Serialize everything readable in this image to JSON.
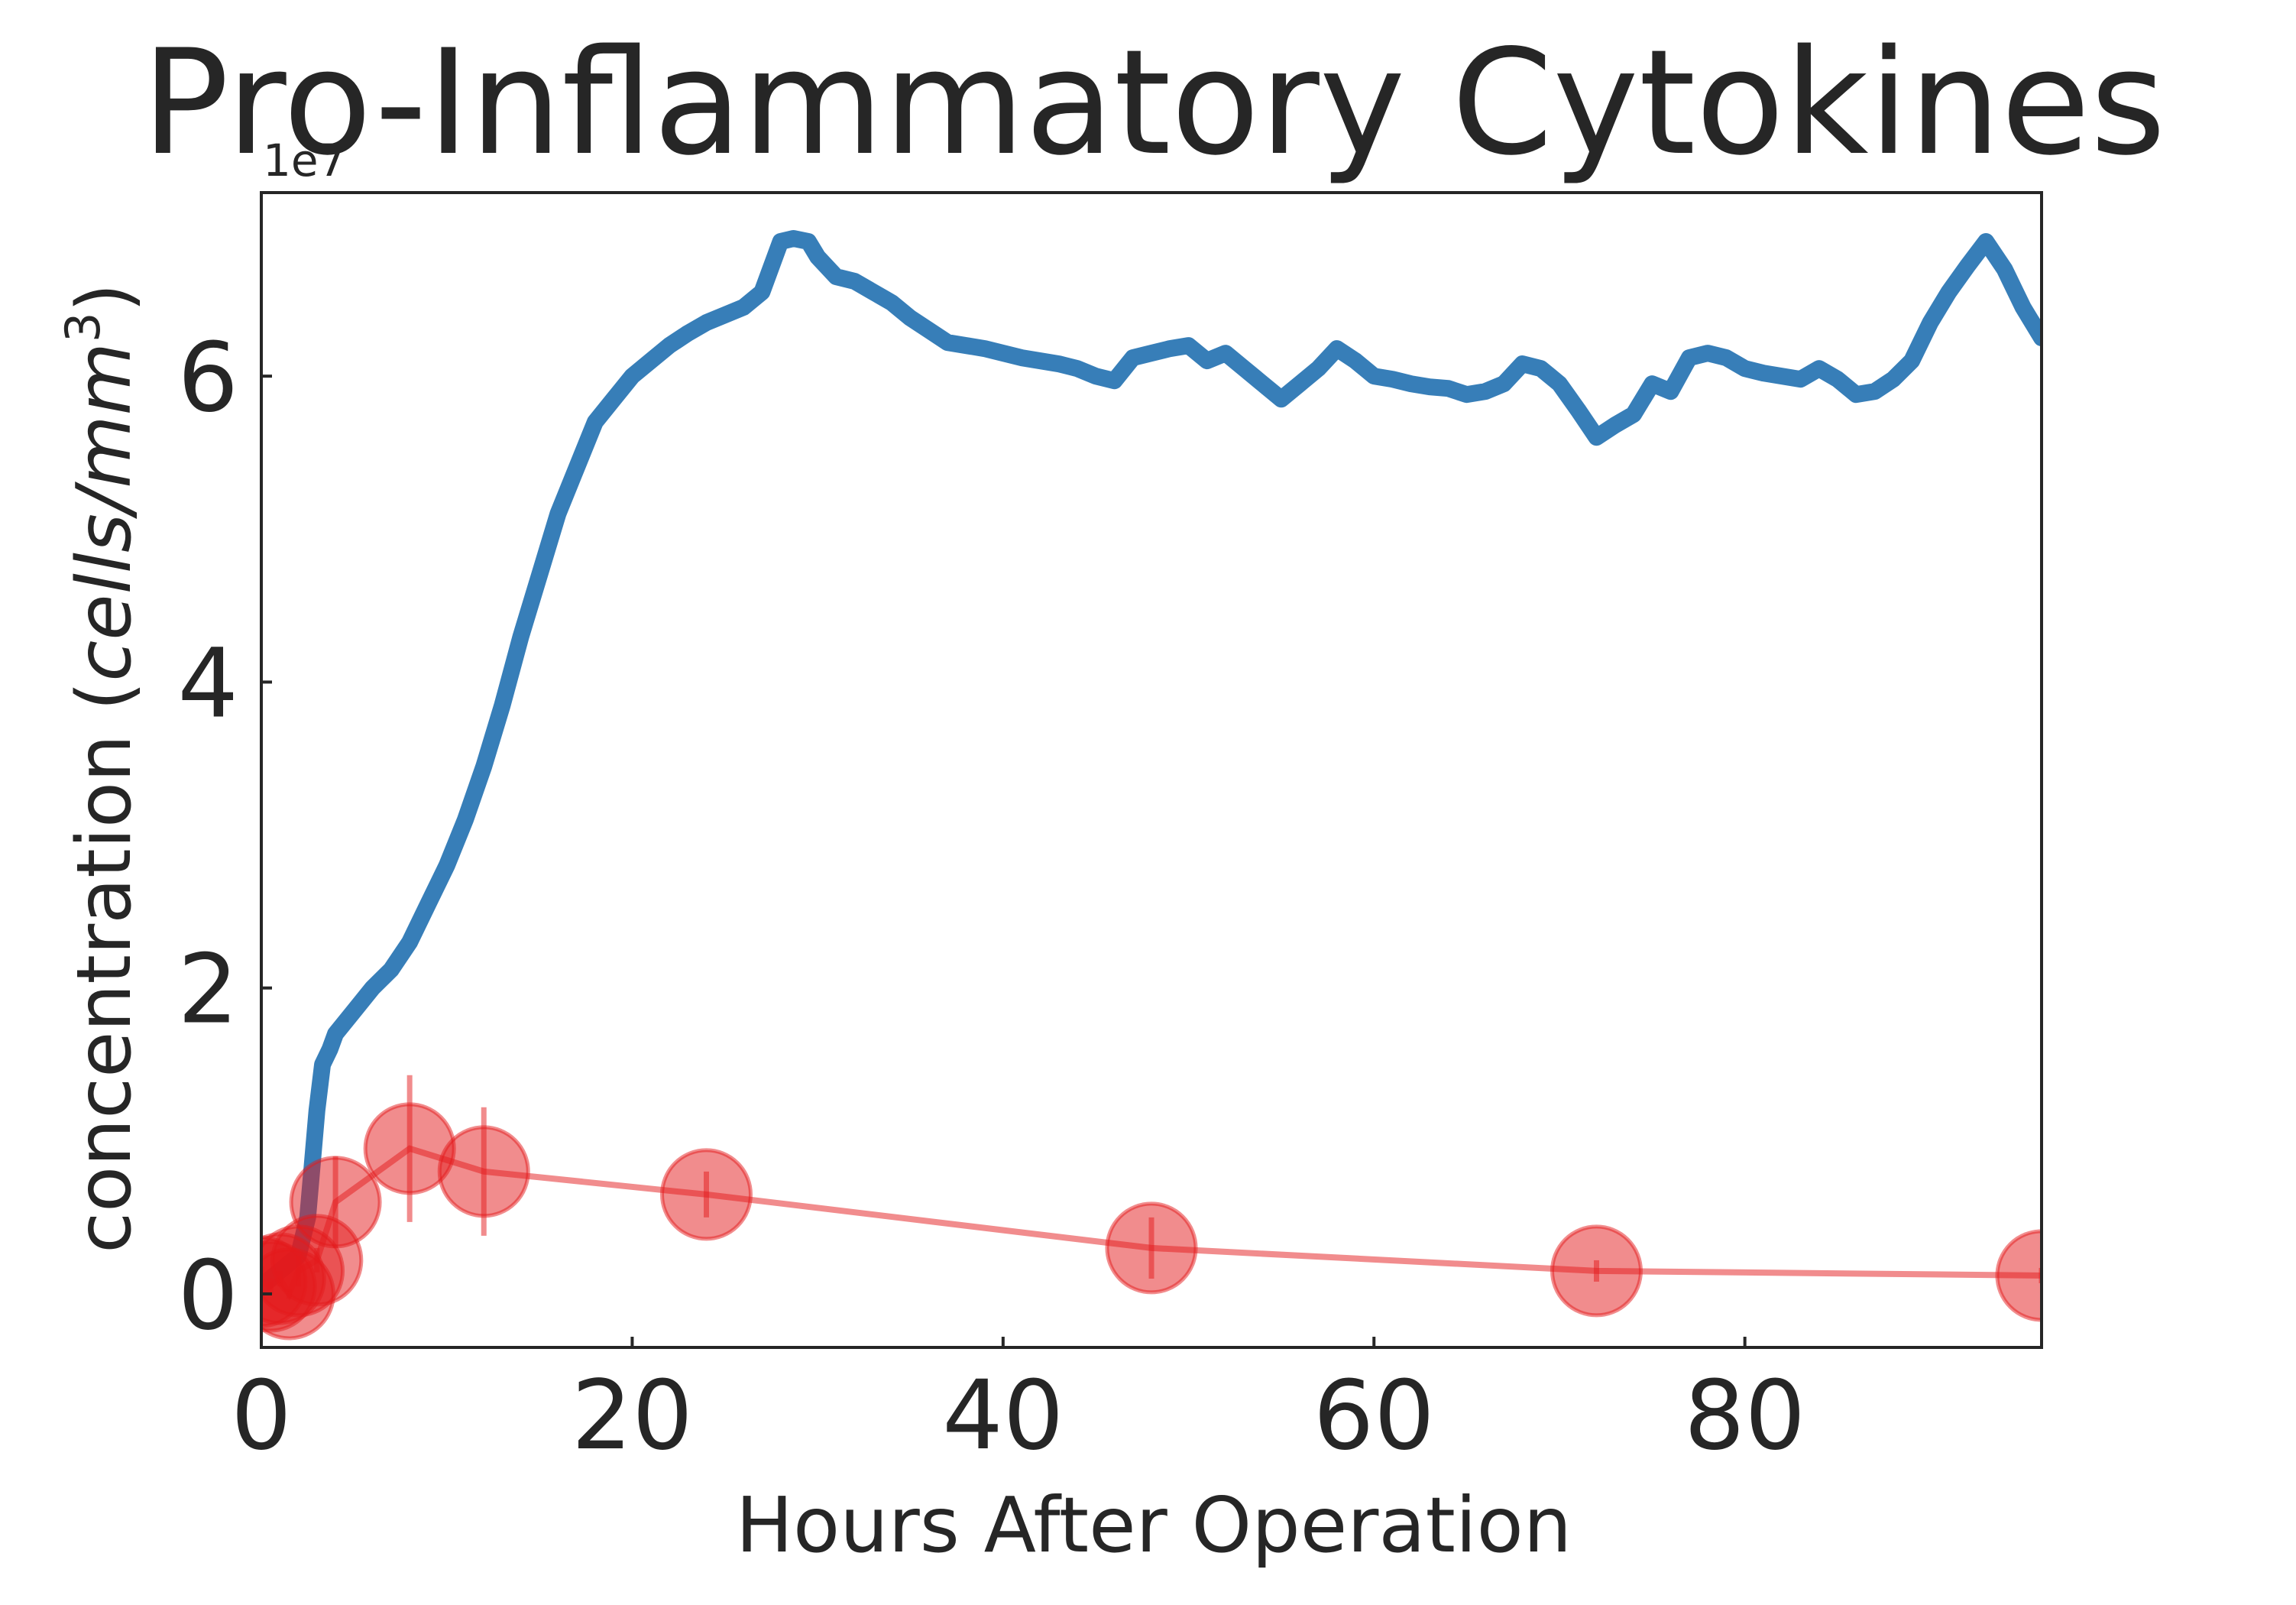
{
  "chart_data": {
    "type": "line",
    "title": "Pro-Inflammatory Cytokines",
    "xlabel": "Hours After Operation",
    "ylabel": "concentration (",
    "ylabel_unit": "cells/mm",
    "ylabel_exp": "3",
    "ylabel_close": ")",
    "y_offset_label": "1e7",
    "xlim": [
      0,
      96
    ],
    "ylim": [
      -0.35,
      7.2
    ],
    "y_scale_factor": 10000000,
    "xticks": [
      0,
      20,
      40,
      60,
      80
    ],
    "xtick_labels": [
      "0",
      "20",
      "40",
      "60",
      "80"
    ],
    "yticks": [
      0,
      2,
      4,
      6
    ],
    "ytick_labels": [
      "0",
      "2",
      "4",
      "6"
    ],
    "grid": false,
    "legend": "none",
    "series": [
      {
        "type": "line",
        "color": "#377eb8",
        "x": [
          0,
          0.5,
          1,
          1.5,
          2,
          2.5,
          3,
          3.3,
          3.7,
          4,
          5,
          6,
          7,
          8,
          9,
          10,
          11,
          12,
          13,
          14,
          15,
          16,
          17,
          18,
          19,
          20,
          21,
          22,
          23,
          24,
          25,
          26,
          27,
          28,
          28.7,
          29.5,
          30,
          31,
          32,
          33,
          34,
          35,
          36,
          37,
          38,
          39,
          40,
          41,
          42,
          43,
          44,
          45,
          46,
          47,
          48,
          49,
          50,
          51,
          52,
          53,
          54,
          55,
          56,
          57,
          58,
          59,
          60,
          61,
          62,
          63,
          64,
          65,
          66,
          67,
          68,
          69,
          70,
          71,
          72,
          73,
          74,
          75,
          76,
          77,
          78,
          79,
          80,
          81,
          82,
          83,
          84,
          85,
          86,
          87,
          88,
          89,
          90,
          91,
          92,
          93,
          94,
          95,
          96
        ],
        "y": [
          0.05,
          0.1,
          0.15,
          0.2,
          0.25,
          0.5,
          1.2,
          1.5,
          1.6,
          1.7,
          1.85,
          2.0,
          2.12,
          2.3,
          2.55,
          2.8,
          3.1,
          3.45,
          3.85,
          4.3,
          4.7,
          5.1,
          5.4,
          5.7,
          5.85,
          6.0,
          6.1,
          6.2,
          6.28,
          6.35,
          6.4,
          6.45,
          6.55,
          6.88,
          6.9,
          6.88,
          6.78,
          6.65,
          6.62,
          6.55,
          6.48,
          6.38,
          6.3,
          6.22,
          6.2,
          6.18,
          6.15,
          6.12,
          6.1,
          6.08,
          6.05,
          6.0,
          5.97,
          6.12,
          6.15,
          6.18,
          6.2,
          6.1,
          6.15,
          6.05,
          5.95,
          5.85,
          5.95,
          6.05,
          6.18,
          6.1,
          6.0,
          5.98,
          5.95,
          5.93,
          5.92,
          5.88,
          5.9,
          5.95,
          6.08,
          6.05,
          5.95,
          5.78,
          5.6,
          5.68,
          5.75,
          5.95,
          5.9,
          6.12,
          6.15,
          6.12,
          6.05,
          6.02,
          6.0,
          5.98,
          6.05,
          5.98,
          5.88,
          5.9,
          5.98,
          6.1,
          6.35,
          6.55,
          6.72,
          6.88,
          6.7,
          6.45,
          6.25
        ]
      },
      {
        "type": "scatter-errorbar",
        "color": "#e41a1c",
        "x": [
          0,
          0.5,
          1,
          1.5,
          2,
          3,
          4,
          8,
          12,
          24,
          48,
          72,
          96
        ],
        "y": [
          0.08,
          0.05,
          0.1,
          0.0,
          0.15,
          0.22,
          0.6,
          0.95,
          0.8,
          0.65,
          0.3,
          0.15,
          0.12
        ],
        "yerr": [
          0.1,
          0.05,
          0.05,
          0.03,
          0.1,
          0.08,
          0.3,
          0.48,
          0.42,
          0.15,
          0.2,
          0.07,
          0.05
        ]
      }
    ]
  }
}
